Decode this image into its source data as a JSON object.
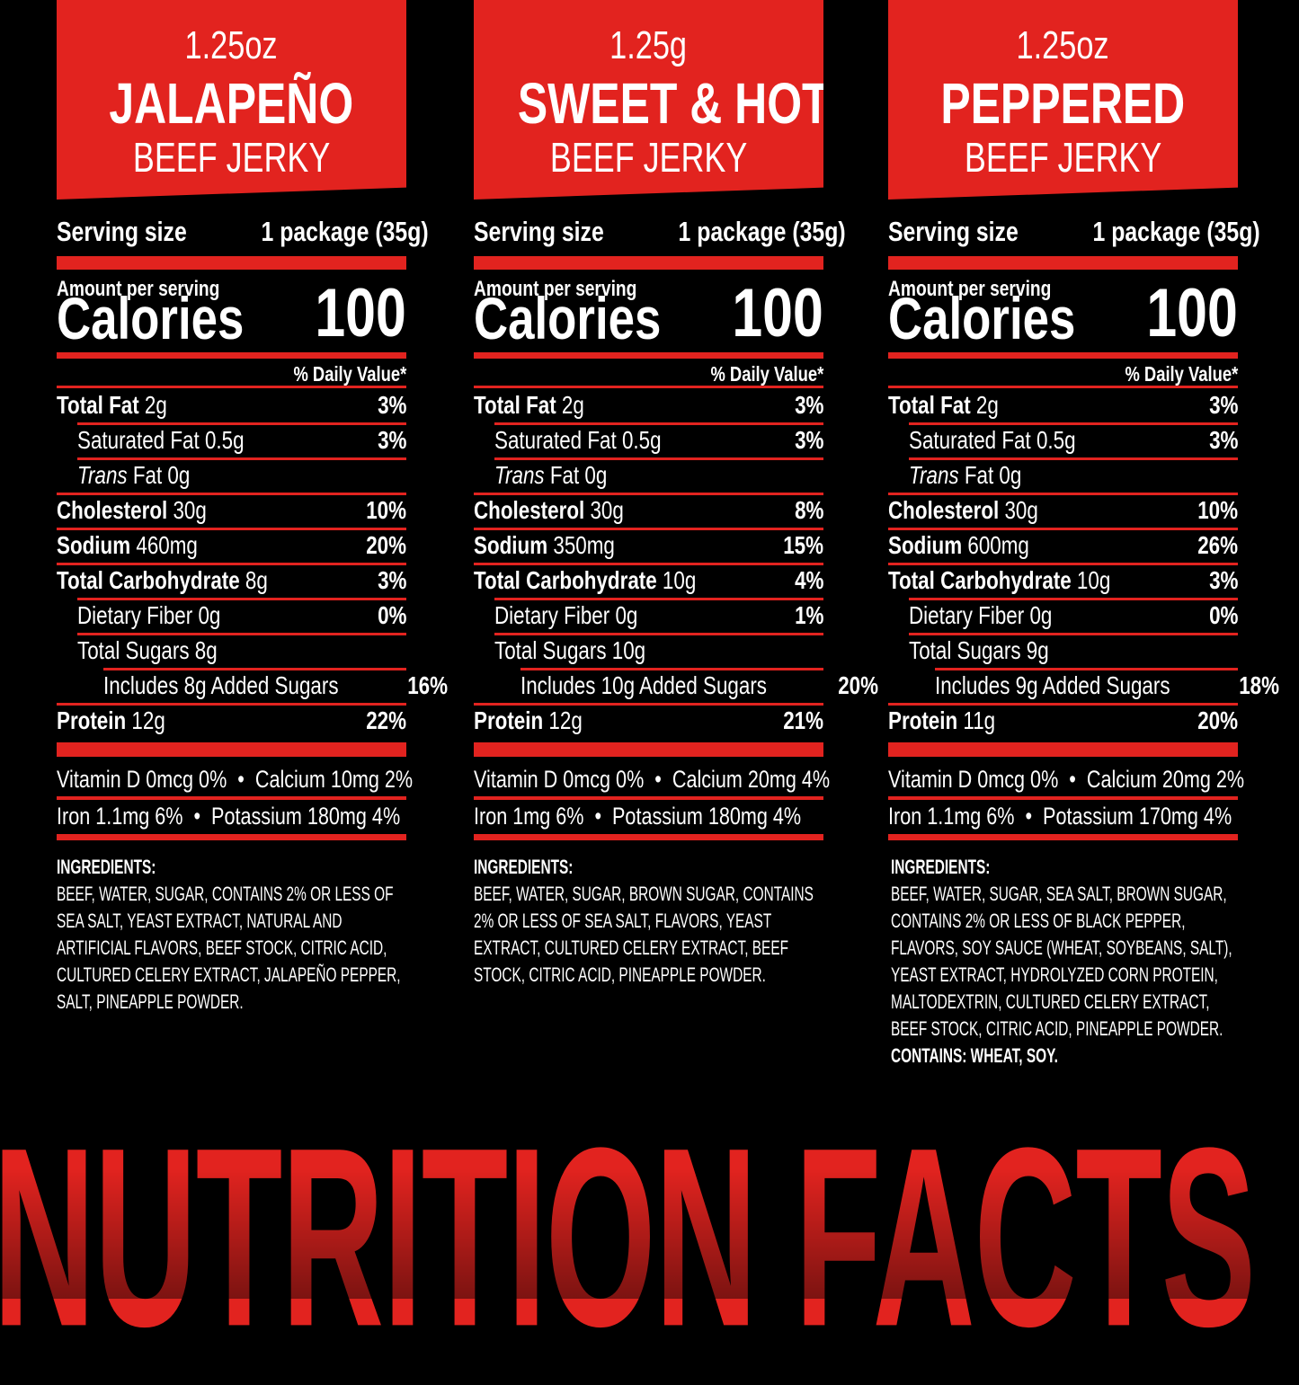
{
  "colors": {
    "accent": "#e2231f",
    "background": "#000000",
    "text": "#ffffff"
  },
  "footer_title": "NUTRITION FACTS",
  "panels": [
    {
      "size": "1.25oz",
      "name": "JALAPEÑO",
      "subtitle": "BEEF JERKY",
      "serving_label": "Serving size",
      "serving_value": "1 package (35g)",
      "amount_label": "Amount per serving",
      "calories_label": "Calories",
      "calories": "100",
      "dv_header": "% Daily Value*",
      "rows": [
        {
          "type": "main",
          "label": "Total Fat",
          "amount": "2g",
          "dv": "3%"
        },
        {
          "type": "sub",
          "label": "Saturated Fat",
          "amount": "0.5g",
          "dv": "3%"
        },
        {
          "type": "trans",
          "label": "Trans",
          "amount": "Fat 0g",
          "dv": ""
        },
        {
          "type": "main",
          "label": "Cholesterol",
          "amount": "30g",
          "dv": "10%"
        },
        {
          "type": "main",
          "label": "Sodium",
          "amount": "460mg",
          "dv": "20%"
        },
        {
          "type": "main",
          "label": "Total Carbohydrate",
          "amount": "8g",
          "dv": "3%"
        },
        {
          "type": "sub",
          "label": "Dietary Fiber",
          "amount": "0g",
          "dv": "0%"
        },
        {
          "type": "sugar",
          "label": "Total Sugars",
          "amount": "8g",
          "dv": ""
        },
        {
          "type": "added",
          "label": "Includes 8g Added Sugars",
          "amount": "",
          "dv": "16%"
        },
        {
          "type": "main",
          "label": "Protein",
          "amount": "12g",
          "dv": "22%"
        }
      ],
      "vitamins": [
        "Vitamin D 0mcg 0%  •  Calcium 10mg 2%",
        "Iron 1.1mg 6%  •  Potassium 180mg 4%"
      ],
      "ingredients_label": "INGREDIENTS:",
      "ingredients": [
        "BEEF, WATER, SUGAR, CONTAINS 2% OR LESS OF",
        "SEA SALT, YEAST EXTRACT, NATURAL AND",
        "ARTIFICIAL FLAVORS, BEEF STOCK, CITRIC ACID,",
        "CULTURED CELERY EXTRACT, JALAPEÑO PEPPER,",
        "SALT, PINEAPPLE POWDER."
      ],
      "contains": ""
    },
    {
      "size": "1.25g",
      "name": "SWEET & HOT",
      "subtitle": "BEEF JERKY",
      "serving_label": "Serving size",
      "serving_value": "1 package (35g)",
      "amount_label": "Amount per serving",
      "calories_label": "Calories",
      "calories": "100",
      "dv_header": "% Daily Value*",
      "rows": [
        {
          "type": "main",
          "label": "Total Fat",
          "amount": "2g",
          "dv": "3%"
        },
        {
          "type": "sub",
          "label": "Saturated Fat",
          "amount": "0.5g",
          "dv": "3%"
        },
        {
          "type": "trans",
          "label": "Trans",
          "amount": "Fat 0g",
          "dv": ""
        },
        {
          "type": "main",
          "label": "Cholesterol",
          "amount": "30g",
          "dv": "8%"
        },
        {
          "type": "main",
          "label": "Sodium",
          "amount": "350mg",
          "dv": "15%"
        },
        {
          "type": "main",
          "label": "Total Carbohydrate",
          "amount": "10g",
          "dv": "4%"
        },
        {
          "type": "sub",
          "label": "Dietary Fiber",
          "amount": "0g",
          "dv": "1%"
        },
        {
          "type": "sugar",
          "label": "Total Sugars",
          "amount": "10g",
          "dv": ""
        },
        {
          "type": "added",
          "label": "Includes 10g Added Sugars",
          "amount": "",
          "dv": "20%"
        },
        {
          "type": "main",
          "label": "Protein",
          "amount": "12g",
          "dv": "21%"
        }
      ],
      "vitamins": [
        "Vitamin D 0mcg 0%  •  Calcium 20mg 4%",
        "Iron 1mg 6%  •  Potassium 180mg 4%"
      ],
      "ingredients_label": "INGREDIENTS:",
      "ingredients": [
        "BEEF, WATER, SUGAR, BROWN SUGAR, CONTAINS",
        "2% OR LESS OF SEA SALT, FLAVORS, YEAST",
        "EXTRACT, CULTURED CELERY EXTRACT, BEEF",
        "STOCK, CITRIC ACID, PINEAPPLE POWDER."
      ],
      "contains": ""
    },
    {
      "size": "1.25oz",
      "name": "PEPPERED",
      "subtitle": "BEEF JERKY",
      "serving_label": "Serving size",
      "serving_value": "1 package (35g)",
      "amount_label": "Amount per serving",
      "calories_label": "Calories",
      "calories": "100",
      "dv_header": "% Daily Value*",
      "rows": [
        {
          "type": "main",
          "label": "Total Fat",
          "amount": "2g",
          "dv": "3%"
        },
        {
          "type": "sub",
          "label": "Saturated Fat",
          "amount": "0.5g",
          "dv": "3%"
        },
        {
          "type": "trans",
          "label": "Trans",
          "amount": "Fat 0g",
          "dv": ""
        },
        {
          "type": "main",
          "label": "Cholesterol",
          "amount": "30g",
          "dv": "10%"
        },
        {
          "type": "main",
          "label": "Sodium",
          "amount": "600mg",
          "dv": "26%"
        },
        {
          "type": "main",
          "label": "Total Carbohydrate",
          "amount": "10g",
          "dv": "3%"
        },
        {
          "type": "sub",
          "label": "Dietary Fiber",
          "amount": "0g",
          "dv": "0%"
        },
        {
          "type": "sugar",
          "label": "Total Sugars",
          "amount": "9g",
          "dv": ""
        },
        {
          "type": "added",
          "label": "Includes 9g Added Sugars",
          "amount": "",
          "dv": "18%"
        },
        {
          "type": "main",
          "label": "Protein",
          "amount": "11g",
          "dv": "20%"
        }
      ],
      "vitamins": [
        "Vitamin D 0mcg 0%  •  Calcium 20mg 2%",
        "Iron 1.1mg 6%  •  Potassium 170mg 4%"
      ],
      "ingredients_label": "INGREDIENTS:",
      "ingredients": [
        "BEEF, WATER, SUGAR, SEA SALT, BROWN SUGAR,",
        "CONTAINS 2% OR LESS OF BLACK PEPPER,",
        "FLAVORS, SOY SAUCE (WHEAT, SOYBEANS, SALT),",
        "YEAST EXTRACT, HYDROLYZED CORN PROTEIN,",
        "MALTODEXTRIN, CULTURED CELERY EXTRACT,",
        "BEEF STOCK, CITRIC ACID, PINEAPPLE POWDER."
      ],
      "contains": "CONTAINS: WHEAT, SOY."
    }
  ]
}
